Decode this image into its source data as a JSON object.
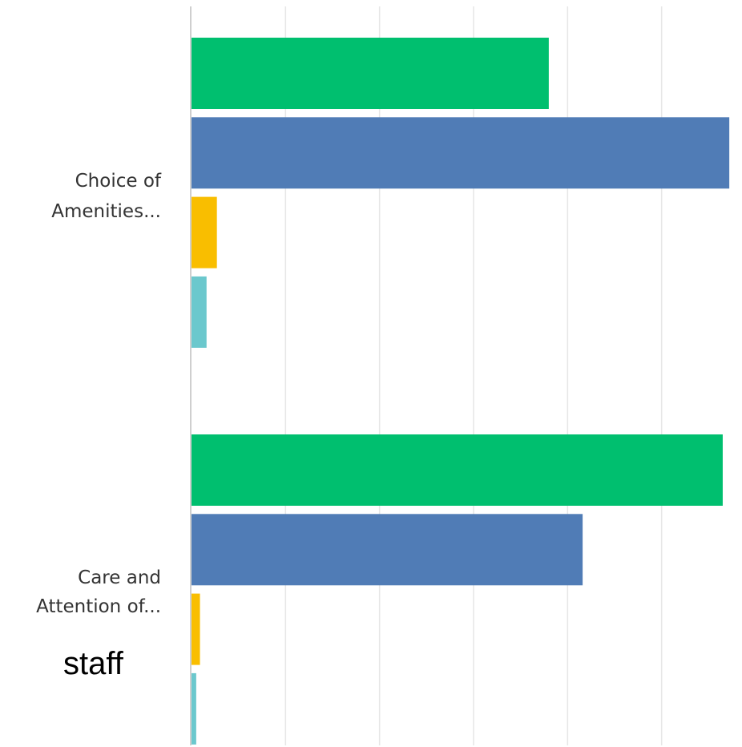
{
  "chart_data": {
    "type": "bar",
    "orientation": "horizontal",
    "categories": [
      {
        "lines": [
          "Choice of",
          "Amenities..."
        ]
      },
      {
        "lines": [
          "Care and",
          "Attention of..."
        ]
      }
    ],
    "series": [
      {
        "color": "#00bf6f",
        "values": [
          38,
          56.5
        ]
      },
      {
        "color": "#507cb6",
        "values": [
          57.2,
          41.6
        ]
      },
      {
        "color": "#f9be00",
        "values": [
          2.7,
          0.9
        ]
      },
      {
        "color": "#6bc8cd",
        "values": [
          1.6,
          0.5
        ]
      }
    ],
    "xlim": [
      0,
      60
    ],
    "grid": true,
    "gridline_step": 10,
    "annotations": [
      {
        "text": "staff"
      }
    ]
  }
}
